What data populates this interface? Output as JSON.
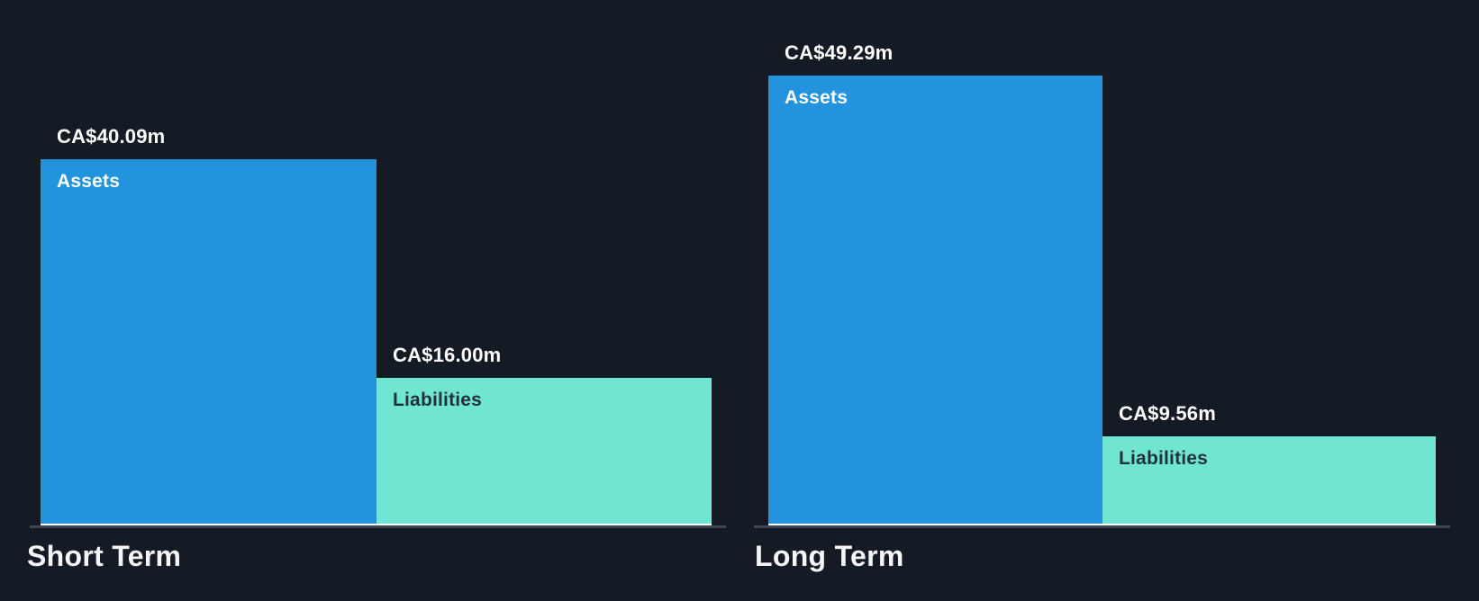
{
  "chart_data": {
    "type": "bar",
    "currency": "CA$",
    "unit": "m",
    "legend_position": "none",
    "grid": false,
    "categories": [
      "Short Term",
      "Long Term"
    ],
    "series": [
      {
        "name": "Assets",
        "values": [
          40.09,
          49.29
        ]
      },
      {
        "name": "Liabilities",
        "values": [
          16.0,
          9.56
        ]
      }
    ],
    "groups": [
      {
        "label": "Short Term",
        "bars": [
          {
            "name": "Assets",
            "value": 40.09,
            "display": "CA$40.09m"
          },
          {
            "name": "Liabilities",
            "value": 16.0,
            "display": "CA$16.00m"
          }
        ]
      },
      {
        "label": "Long Term",
        "bars": [
          {
            "name": "Assets",
            "value": 49.29,
            "display": "CA$49.29m"
          },
          {
            "name": "Liabilities",
            "value": 9.56,
            "display": "CA$9.56m"
          }
        ]
      }
    ],
    "colors": {
      "background": "#151B24",
      "assets_bar": "#2493DD",
      "liabilities_bar": "#70E6D2",
      "value_label_text": "#FFFFFF",
      "liabilities_label_text": "#22303C",
      "group_label_text": "#F4F6F7",
      "axis_line": "#3E4651",
      "bar_baseline": "#FFFFFF"
    }
  }
}
